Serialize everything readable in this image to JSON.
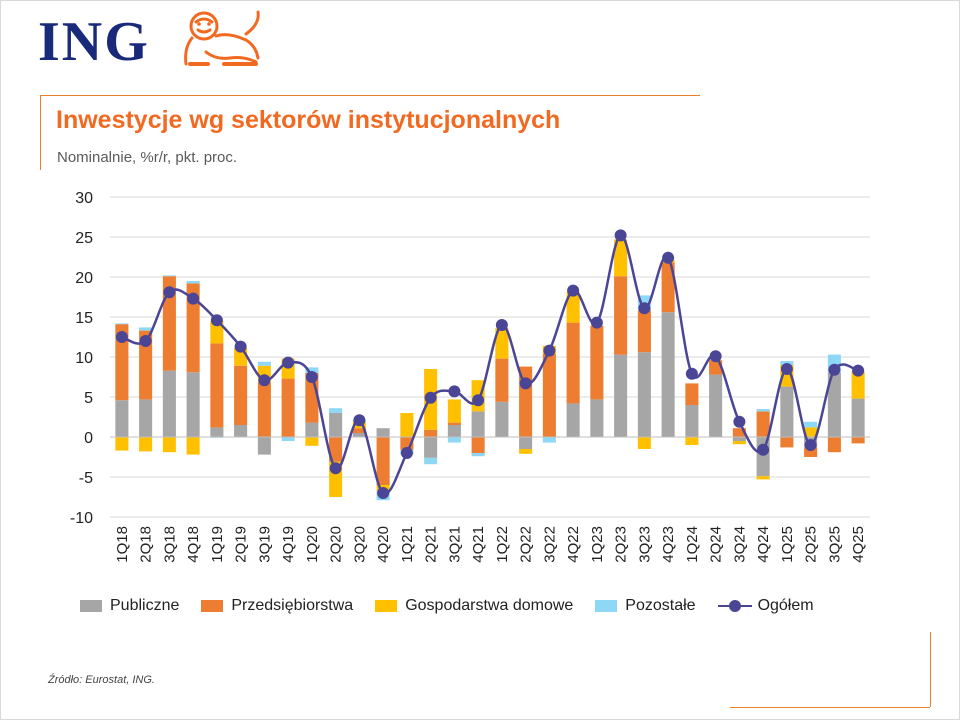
{
  "logo": {
    "text": "ING"
  },
  "header": {
    "title": "Inwestycje wg sektorów instytucjonalnych",
    "subtitle": "Nominalnie, %r/r, pkt. proc."
  },
  "footer": {
    "source": "Źródło: Eurostat, ING."
  },
  "colors": {
    "accent": "#f26a21",
    "publiczne": "#a6a6a6",
    "przedsiebiorstwa": "#ed7d31",
    "gospodarstwa": "#ffc000",
    "pozostale": "#8fd8f5",
    "ogolem": "#4b4596"
  },
  "chart_data": {
    "type": "bar",
    "stacked": true,
    "categories": [
      "1Q18",
      "2Q18",
      "3Q18",
      "4Q18",
      "1Q19",
      "2Q19",
      "3Q19",
      "4Q19",
      "1Q20",
      "2Q20",
      "3Q20",
      "4Q20",
      "1Q21",
      "2Q21",
      "3Q21",
      "4Q21",
      "1Q22",
      "2Q22",
      "3Q22",
      "4Q22",
      "1Q23",
      "2Q23",
      "3Q23",
      "4Q23",
      "1Q24",
      "2Q24",
      "3Q24",
      "4Q24",
      "1Q25",
      "2Q25",
      "3Q25",
      "4Q25"
    ],
    "ylim": [
      -10,
      30
    ],
    "yticks": [
      "30",
      "25",
      "20",
      "15",
      "10",
      "5",
      "0",
      "-5",
      "-10"
    ],
    "grid": true,
    "legend_position": "bottom",
    "series": [
      {
        "name": "Publiczne",
        "type": "bar",
        "values": [
          4.6,
          4.7,
          8.3,
          8.1,
          1.2,
          1.5,
          -2.2,
          0.0,
          1.8,
          3.0,
          0.5,
          1.1,
          0.0,
          -2.6,
          1.5,
          3.2,
          4.4,
          -1.5,
          0.0,
          4.2,
          4.7,
          10.3,
          10.6,
          15.6,
          4.0,
          7.8,
          -0.5,
          -4.9,
          6.3,
          -1.3,
          8.0,
          4.8
        ]
      },
      {
        "name": "Przedsiębiorstwa",
        "type": "bar",
        "values": [
          9.5,
          8.6,
          11.8,
          11.1,
          10.5,
          7.4,
          6.8,
          7.3,
          6.2,
          -3.1,
          0.6,
          -6.0,
          -1.6,
          0.9,
          0.3,
          -2.0,
          5.4,
          8.8,
          10.4,
          10.1,
          9.2,
          9.8,
          5.2,
          6.2,
          2.7,
          1.8,
          1.1,
          3.2,
          -1.3,
          -1.2,
          -1.9,
          -0.8
        ]
      },
      {
        "name": "Gospodarstwa domowe",
        "type": "bar",
        "values": [
          -1.7,
          -1.8,
          -1.9,
          -2.2,
          2.8,
          2.2,
          2.1,
          2.5,
          -1.1,
          -4.4,
          0.8,
          -0.7,
          3.0,
          7.6,
          2.9,
          3.9,
          3.8,
          -0.6,
          1.0,
          3.8,
          0.0,
          4.6,
          -1.5,
          0.3,
          -1.0,
          0.0,
          -0.4,
          -0.4,
          2.7,
          1.2,
          0.0,
          3.4
        ]
      },
      {
        "name": "Pozostałe",
        "type": "bar",
        "values": [
          0.1,
          0.4,
          0.1,
          0.3,
          -0.1,
          0.0,
          0.5,
          -0.5,
          0.7,
          0.6,
          0.2,
          -1.2,
          -0.6,
          -0.8,
          -0.7,
          -0.4,
          0.0,
          0.0,
          -0.7,
          0.0,
          0.0,
          0.0,
          1.9,
          0.0,
          0.0,
          0.0,
          0.0,
          0.3,
          0.5,
          0.7,
          2.3,
          0.0
        ]
      },
      {
        "name": "Ogółem",
        "type": "line",
        "values": [
          12.5,
          12.0,
          18.1,
          17.3,
          14.6,
          11.3,
          7.1,
          9.3,
          7.5,
          -3.9,
          2.1,
          -7.0,
          -2.0,
          4.9,
          5.7,
          4.6,
          14.0,
          6.7,
          10.8,
          18.3,
          14.3,
          25.2,
          16.1,
          22.4,
          7.9,
          10.1,
          1.9,
          -1.6,
          8.5,
          -1.0,
          8.4,
          8.3
        ]
      }
    ]
  }
}
